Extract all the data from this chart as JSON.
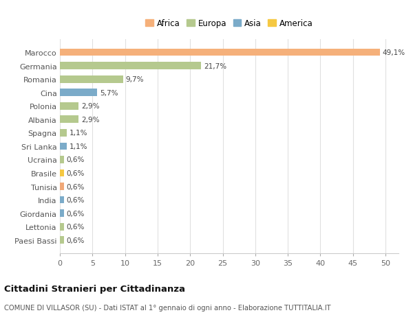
{
  "categories": [
    "Paesi Bassi",
    "Lettonia",
    "Giordania",
    "India",
    "Tunisia",
    "Brasile",
    "Ucraina",
    "Sri Lanka",
    "Spagna",
    "Albania",
    "Polonia",
    "Cina",
    "Romania",
    "Germania",
    "Marocco"
  ],
  "values": [
    0.6,
    0.6,
    0.6,
    0.6,
    0.6,
    0.6,
    0.6,
    1.1,
    1.1,
    2.9,
    2.9,
    5.7,
    9.7,
    21.7,
    49.1
  ],
  "labels": [
    "0,6%",
    "0,6%",
    "0,6%",
    "0,6%",
    "0,6%",
    "0,6%",
    "0,6%",
    "1,1%",
    "1,1%",
    "2,9%",
    "2,9%",
    "5,7%",
    "9,7%",
    "21,7%",
    "49,1%"
  ],
  "colors": [
    "#b5c98e",
    "#b5c98e",
    "#7babc9",
    "#7babc9",
    "#f0a878",
    "#f5c842",
    "#b5c98e",
    "#7babc9",
    "#b5c98e",
    "#b5c98e",
    "#b5c98e",
    "#7babc9",
    "#b5c98e",
    "#b5c98e",
    "#f5b07a"
  ],
  "legend_labels": [
    "Africa",
    "Europa",
    "Asia",
    "America"
  ],
  "legend_colors": [
    "#f5b07a",
    "#b5c98e",
    "#7babc9",
    "#f5c842"
  ],
  "title": "Cittadini Stranieri per Cittadinanza",
  "subtitle": "COMUNE DI VILLASOR (SU) - Dati ISTAT al 1° gennaio di ogni anno - Elaborazione TUTTITALIA.IT",
  "xlim": [
    0,
    52
  ],
  "background_color": "#ffffff",
  "grid_color": "#e0e0e0"
}
